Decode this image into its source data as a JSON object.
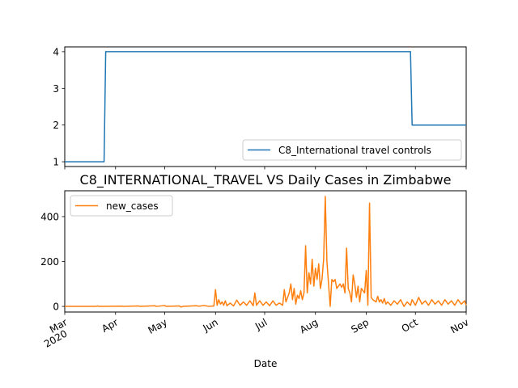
{
  "chart_data": [
    {
      "type": "line",
      "title": "",
      "xlabel": "",
      "ylabel": "",
      "ylim": [
        0.87,
        4.13
      ],
      "yticks": [
        1,
        2,
        3,
        4
      ],
      "legend": "lower-right",
      "grid": false,
      "series": [
        {
          "name": "C8_International travel controls",
          "color": "#1f77b4",
          "points": [
            [
              "2020-03-01",
              1
            ],
            [
              "2020-03-25",
              1
            ],
            [
              "2020-03-26",
              4
            ],
            [
              "2020-09-28",
              4
            ],
            [
              "2020-09-29",
              2
            ],
            [
              "2020-11-01",
              2
            ]
          ]
        }
      ]
    },
    {
      "type": "line",
      "title": "C8_INTERNATIONAL_TRAVEL VS Daily Cases in Zimbabwe",
      "xlabel": "Date",
      "ylabel": "",
      "ylim": [
        -25,
        515
      ],
      "yticks": [
        0,
        200,
        400
      ],
      "legend": "upper-left",
      "grid": false,
      "series": [
        {
          "name": "new_cases",
          "color": "#ff7f0e",
          "points": [
            [
              "2020-03-01",
              0
            ],
            [
              "2020-03-20",
              0
            ],
            [
              "2020-03-21",
              2
            ],
            [
              "2020-03-22",
              0
            ],
            [
              "2020-04-05",
              1
            ],
            [
              "2020-04-06",
              0
            ],
            [
              "2020-04-15",
              2
            ],
            [
              "2020-04-16",
              0
            ],
            [
              "2020-04-25",
              3
            ],
            [
              "2020-04-26",
              0
            ],
            [
              "2020-05-01",
              4
            ],
            [
              "2020-05-02",
              0
            ],
            [
              "2020-05-10",
              2
            ],
            [
              "2020-05-11",
              -3
            ],
            [
              "2020-05-12",
              0
            ],
            [
              "2020-05-20",
              3
            ],
            [
              "2020-05-22",
              1
            ],
            [
              "2020-05-25",
              4
            ],
            [
              "2020-05-28",
              0
            ],
            [
              "2020-05-31",
              2
            ],
            [
              "2020-06-01",
              75
            ],
            [
              "2020-06-02",
              5
            ],
            [
              "2020-06-03",
              30
            ],
            [
              "2020-06-04",
              10
            ],
            [
              "2020-06-05",
              20
            ],
            [
              "2020-06-06",
              5
            ],
            [
              "2020-06-07",
              25
            ],
            [
              "2020-06-08",
              3
            ],
            [
              "2020-06-10",
              15
            ],
            [
              "2020-06-12",
              2
            ],
            [
              "2020-06-14",
              28
            ],
            [
              "2020-06-16",
              5
            ],
            [
              "2020-06-18",
              20
            ],
            [
              "2020-06-20",
              5
            ],
            [
              "2020-06-22",
              25
            ],
            [
              "2020-06-24",
              3
            ],
            [
              "2020-06-25",
              60
            ],
            [
              "2020-06-26",
              5
            ],
            [
              "2020-06-28",
              25
            ],
            [
              "2020-06-30",
              5
            ],
            [
              "2020-07-02",
              20
            ],
            [
              "2020-07-04",
              3
            ],
            [
              "2020-07-06",
              25
            ],
            [
              "2020-07-08",
              5
            ],
            [
              "2020-07-10",
              15
            ],
            [
              "2020-07-12",
              5
            ],
            [
              "2020-07-13",
              75
            ],
            [
              "2020-07-14",
              20
            ],
            [
              "2020-07-16",
              60
            ],
            [
              "2020-07-17",
              100
            ],
            [
              "2020-07-18",
              30
            ],
            [
              "2020-07-19",
              80
            ],
            [
              "2020-07-20",
              10
            ],
            [
              "2020-07-21",
              50
            ],
            [
              "2020-07-22",
              35
            ],
            [
              "2020-07-23",
              70
            ],
            [
              "2020-07-24",
              30
            ],
            [
              "2020-07-25",
              60
            ],
            [
              "2020-07-26",
              270
            ],
            [
              "2020-07-27",
              60
            ],
            [
              "2020-07-28",
              150
            ],
            [
              "2020-07-29",
              100
            ],
            [
              "2020-07-30",
              210
            ],
            [
              "2020-07-31",
              90
            ],
            [
              "2020-08-01",
              170
            ],
            [
              "2020-08-02",
              120
            ],
            [
              "2020-08-03",
              190
            ],
            [
              "2020-08-04",
              80
            ],
            [
              "2020-08-05",
              120
            ],
            [
              "2020-08-06",
              210
            ],
            [
              "2020-08-07",
              490
            ],
            [
              "2020-08-08",
              200
            ],
            [
              "2020-08-09",
              100
            ],
            [
              "2020-08-10",
              0
            ],
            [
              "2020-08-11",
              120
            ],
            [
              "2020-08-12",
              110
            ],
            [
              "2020-08-13",
              120
            ],
            [
              "2020-08-14",
              80
            ],
            [
              "2020-08-15",
              90
            ],
            [
              "2020-08-16",
              100
            ],
            [
              "2020-08-17",
              85
            ],
            [
              "2020-08-18",
              100
            ],
            [
              "2020-08-19",
              60
            ],
            [
              "2020-08-20",
              260
            ],
            [
              "2020-08-21",
              80
            ],
            [
              "2020-08-22",
              60
            ],
            [
              "2020-08-23",
              20
            ],
            [
              "2020-08-24",
              140
            ],
            [
              "2020-08-25",
              100
            ],
            [
              "2020-08-26",
              40
            ],
            [
              "2020-08-27",
              90
            ],
            [
              "2020-08-28",
              20
            ],
            [
              "2020-08-29",
              80
            ],
            [
              "2020-08-30",
              70
            ],
            [
              "2020-08-31",
              60
            ],
            [
              "2020-09-01",
              160
            ],
            [
              "2020-09-02",
              5
            ],
            [
              "2020-09-03",
              460
            ],
            [
              "2020-09-04",
              40
            ],
            [
              "2020-09-05",
              30
            ],
            [
              "2020-09-06",
              25
            ],
            [
              "2020-09-07",
              20
            ],
            [
              "2020-09-08",
              45
            ],
            [
              "2020-09-09",
              20
            ],
            [
              "2020-09-10",
              30
            ],
            [
              "2020-09-11",
              15
            ],
            [
              "2020-09-12",
              35
            ],
            [
              "2020-09-13",
              10
            ],
            [
              "2020-09-14",
              20
            ],
            [
              "2020-09-16",
              5
            ],
            [
              "2020-09-18",
              25
            ],
            [
              "2020-09-20",
              10
            ],
            [
              "2020-09-22",
              30
            ],
            [
              "2020-09-24",
              0
            ],
            [
              "2020-09-26",
              20
            ],
            [
              "2020-09-28",
              5
            ],
            [
              "2020-09-29",
              30
            ],
            [
              "2020-10-01",
              5
            ],
            [
              "2020-10-03",
              40
            ],
            [
              "2020-10-05",
              10
            ],
            [
              "2020-10-07",
              25
            ],
            [
              "2020-10-09",
              5
            ],
            [
              "2020-10-11",
              30
            ],
            [
              "2020-10-13",
              10
            ],
            [
              "2020-10-15",
              25
            ],
            [
              "2020-10-17",
              5
            ],
            [
              "2020-10-19",
              30
            ],
            [
              "2020-10-21",
              10
            ],
            [
              "2020-10-23",
              25
            ],
            [
              "2020-10-25",
              5
            ],
            [
              "2020-10-27",
              30
            ],
            [
              "2020-10-29",
              10
            ],
            [
              "2020-10-31",
              25
            ],
            [
              "2020-11-01",
              5
            ]
          ]
        }
      ]
    }
  ],
  "shared_x": {
    "range": [
      "2020-03-01",
      "2020-11-01"
    ],
    "ticks": [
      {
        "date": "2020-03-01",
        "label": "Mar",
        "sublabel": "2020"
      },
      {
        "date": "2020-04-01",
        "label": "Apr",
        "sublabel": ""
      },
      {
        "date": "2020-05-01",
        "label": "May",
        "sublabel": ""
      },
      {
        "date": "2020-06-01",
        "label": "Jun",
        "sublabel": ""
      },
      {
        "date": "2020-07-01",
        "label": "Jul",
        "sublabel": ""
      },
      {
        "date": "2020-08-01",
        "label": "Aug",
        "sublabel": ""
      },
      {
        "date": "2020-09-01",
        "label": "Sep",
        "sublabel": ""
      },
      {
        "date": "2020-10-01",
        "label": "Oct",
        "sublabel": ""
      },
      {
        "date": "2020-11-01",
        "label": "Nov",
        "sublabel": ""
      }
    ],
    "tick_rotation_deg": 30
  }
}
